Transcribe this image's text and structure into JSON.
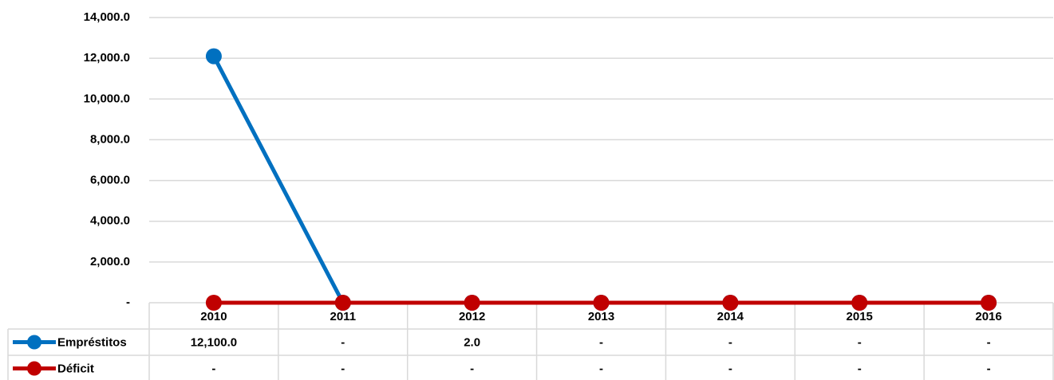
{
  "chart_data": {
    "type": "line",
    "categories": [
      "2010",
      "2011",
      "2012",
      "2013",
      "2014",
      "2015",
      "2016"
    ],
    "series": [
      {
        "name": "Empréstitos",
        "color": "#0070c0",
        "values": [
          12100,
          0,
          2,
          0,
          0,
          0,
          0
        ],
        "value_labels": [
          "12,100.0",
          "-",
          "2.0",
          "-",
          "-",
          "-",
          "-"
        ]
      },
      {
        "name": "Déficit",
        "color": "#c00000",
        "values": [
          0,
          0,
          0,
          0,
          0,
          0,
          0
        ],
        "value_labels": [
          "-",
          "-",
          "-",
          "-",
          "-",
          "-",
          "-"
        ]
      }
    ],
    "ylim": [
      0,
      14000
    ],
    "yticks": [
      {
        "value": 0,
        "label": "-"
      },
      {
        "value": 2000,
        "label": "2,000.0"
      },
      {
        "value": 4000,
        "label": "4,000.0"
      },
      {
        "value": 6000,
        "label": "6,000.0"
      },
      {
        "value": 8000,
        "label": "8,000.0"
      },
      {
        "value": 10000,
        "label": "10,000.0"
      },
      {
        "value": 12000,
        "label": "12,000.0"
      },
      {
        "value": 14000,
        "label": "14,000.0"
      }
    ],
    "grid": true
  }
}
